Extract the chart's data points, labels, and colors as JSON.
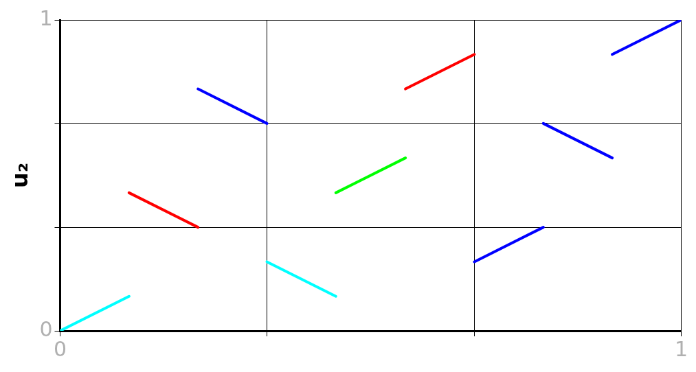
{
  "chart_data": {
    "type": "line",
    "ylabel": "u₂",
    "xlim": [
      0,
      1
    ],
    "ylim": [
      0,
      1
    ],
    "xticks": [
      0,
      {
        "value": 0.333,
        "label": null
      },
      {
        "value": 0.667,
        "label": null
      },
      1
    ],
    "yticks": [
      0,
      {
        "value": 0.333,
        "label": null
      },
      {
        "value": 0.667,
        "label": null
      },
      1
    ],
    "grid": true,
    "legend": false,
    "marker": "none",
    "line_style": "solid",
    "series": [
      {
        "color": "#00ffff",
        "x": [
          0,
          0.111
        ],
        "values": [
          0,
          0.111
        ]
      },
      {
        "color": "#ff0000",
        "x": [
          0.111,
          0.222
        ],
        "values": [
          0.444,
          0.333
        ]
      },
      {
        "color": "#0000ff",
        "x": [
          0.222,
          0.333
        ],
        "values": [
          0.778,
          0.667
        ]
      },
      {
        "color": "#00ffff",
        "x": [
          0.333,
          0.444
        ],
        "values": [
          0.222,
          0.111
        ]
      },
      {
        "color": "#00ff00",
        "x": [
          0.444,
          0.556
        ],
        "values": [
          0.444,
          0.556
        ]
      },
      {
        "color": "#ff0000",
        "x": [
          0.556,
          0.667
        ],
        "values": [
          0.778,
          0.889
        ]
      },
      {
        "color": "#0000ff",
        "x": [
          0.667,
          0.778
        ],
        "values": [
          0.222,
          0.333
        ]
      },
      {
        "color": "#0000ff",
        "x": [
          0.778,
          0.889
        ],
        "values": [
          0.667,
          0.556
        ]
      },
      {
        "color": "#0000ff",
        "x": [
          0.889,
          1
        ],
        "values": [
          0.889,
          1
        ]
      }
    ]
  }
}
